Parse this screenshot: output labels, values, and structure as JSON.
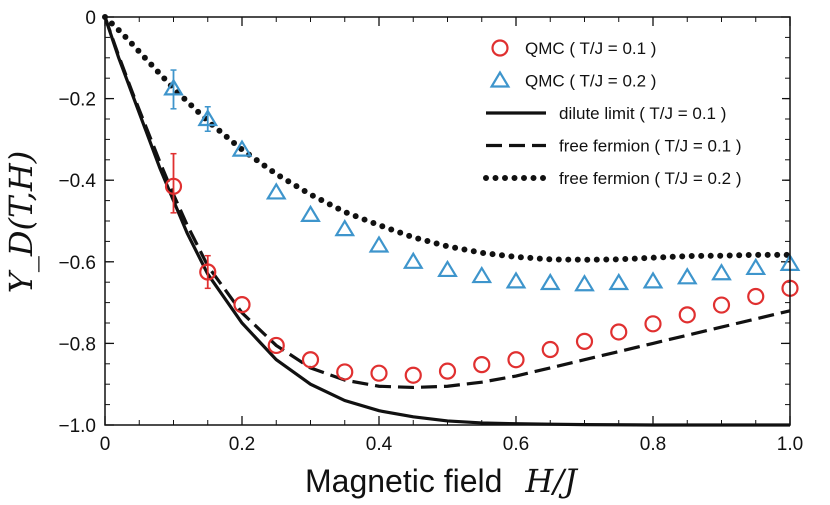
{
  "chart_data": {
    "type": "scatter",
    "xlabel": "Magnetic field",
    "xlabel_math": "H/J",
    "ylabel_math": "Y_D(T,H)",
    "xlim": [
      0,
      1.0
    ],
    "ylim": [
      -1.0,
      0
    ],
    "x_ticks": [
      0,
      0.2,
      0.4,
      0.6,
      0.8,
      1.0
    ],
    "x_tick_labels": [
      "0",
      "0.2",
      "0.4",
      "0.6",
      "0.8",
      "1.0"
    ],
    "y_ticks": [
      -1.0,
      -0.8,
      -0.6,
      -0.4,
      -0.2,
      0
    ],
    "y_tick_labels": [
      "−1.0",
      "−0.8",
      "−0.6",
      "−0.4",
      "−0.2",
      "0"
    ],
    "legend_position": "top-right",
    "series": [
      {
        "name": "QMC ( T/J = 0.1 )",
        "kind": "markers",
        "marker": "circle",
        "color": "#e03030",
        "x": [
          0.1,
          0.15,
          0.2,
          0.25,
          0.3,
          0.35,
          0.4,
          0.45,
          0.5,
          0.55,
          0.6,
          0.65,
          0.7,
          0.75,
          0.8,
          0.85,
          0.9,
          0.95,
          1.0
        ],
        "y": [
          -0.415,
          -0.625,
          -0.705,
          -0.805,
          -0.84,
          -0.87,
          -0.873,
          -0.878,
          -0.868,
          -0.852,
          -0.84,
          -0.815,
          -0.795,
          -0.772,
          -0.752,
          -0.73,
          -0.706,
          -0.685,
          -0.665
        ],
        "error_bars": [
          {
            "x": 0.1,
            "low": -0.48,
            "high": -0.335
          },
          {
            "x": 0.15,
            "low": -0.665,
            "high": -0.585
          }
        ]
      },
      {
        "name": "QMC ( T/J = 0.2 )",
        "kind": "markers",
        "marker": "triangle",
        "color": "#3e95cc",
        "x": [
          0.1,
          0.15,
          0.2,
          0.25,
          0.3,
          0.35,
          0.4,
          0.45,
          0.5,
          0.55,
          0.6,
          0.65,
          0.7,
          0.75,
          0.8,
          0.85,
          0.9,
          0.95,
          1.0
        ],
        "y": [
          -0.175,
          -0.25,
          -0.325,
          -0.43,
          -0.485,
          -0.52,
          -0.56,
          -0.6,
          -0.62,
          -0.635,
          -0.648,
          -0.652,
          -0.655,
          -0.652,
          -0.648,
          -0.638,
          -0.628,
          -0.615,
          -0.605
        ],
        "error_bars": [
          {
            "x": 0.1,
            "low": -0.225,
            "high": -0.13
          },
          {
            "x": 0.15,
            "low": -0.28,
            "high": -0.22
          }
        ]
      },
      {
        "name": "dilute limit ( T/J = 0.1 )",
        "kind": "line",
        "style": "solid",
        "color": "#111111",
        "x": [
          0,
          0.02,
          0.04,
          0.06,
          0.08,
          0.1,
          0.12,
          0.15,
          0.2,
          0.25,
          0.3,
          0.35,
          0.4,
          0.45,
          0.5,
          0.55,
          0.6,
          0.65,
          0.7,
          0.8,
          0.9,
          1.0
        ],
        "y": [
          0,
          -0.1,
          -0.19,
          -0.28,
          -0.37,
          -0.45,
          -0.53,
          -0.63,
          -0.75,
          -0.84,
          -0.9,
          -0.94,
          -0.965,
          -0.98,
          -0.99,
          -0.995,
          -0.997,
          -0.998,
          -0.999,
          -1.0,
          -1.0,
          -1.0
        ]
      },
      {
        "name": "free fermion ( T/J = 0.1 )",
        "kind": "line",
        "style": "dashed",
        "color": "#111111",
        "x": [
          0,
          0.02,
          0.04,
          0.06,
          0.08,
          0.1,
          0.12,
          0.15,
          0.2,
          0.25,
          0.3,
          0.35,
          0.4,
          0.45,
          0.5,
          0.55,
          0.6,
          0.65,
          0.7,
          0.75,
          0.8,
          0.85,
          0.9,
          0.95,
          1.0
        ],
        "y": [
          0,
          -0.095,
          -0.185,
          -0.27,
          -0.355,
          -0.435,
          -0.51,
          -0.61,
          -0.725,
          -0.805,
          -0.86,
          -0.89,
          -0.905,
          -0.908,
          -0.905,
          -0.895,
          -0.88,
          -0.86,
          -0.84,
          -0.82,
          -0.8,
          -0.78,
          -0.76,
          -0.74,
          -0.72
        ]
      },
      {
        "name": "free fermion ( T/J = 0.2 )",
        "kind": "line",
        "style": "dotted",
        "color": "#111111",
        "x": [
          0,
          0.025,
          0.05,
          0.075,
          0.1,
          0.125,
          0.15,
          0.175,
          0.2,
          0.25,
          0.3,
          0.35,
          0.4,
          0.45,
          0.5,
          0.55,
          0.6,
          0.65,
          0.7,
          0.75,
          0.8,
          0.85,
          0.9,
          0.95,
          1.0
        ],
        "y": [
          0,
          -0.04,
          -0.085,
          -0.13,
          -0.175,
          -0.215,
          -0.255,
          -0.29,
          -0.325,
          -0.385,
          -0.435,
          -0.478,
          -0.51,
          -0.54,
          -0.562,
          -0.578,
          -0.588,
          -0.594,
          -0.595,
          -0.594,
          -0.59,
          -0.586,
          -0.585,
          -0.583,
          -0.583
        ]
      }
    ]
  }
}
